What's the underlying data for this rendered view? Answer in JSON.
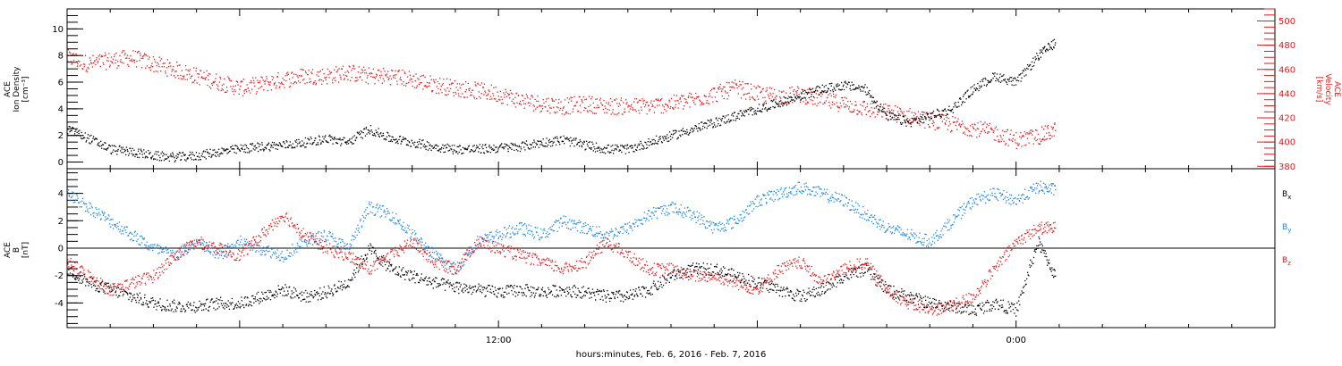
{
  "footer": {
    "xlabel": "hours:minutes, Feb.  6, 2016 - Feb.  7, 2016"
  },
  "colors": {
    "black": "#000000",
    "red": "#e41a1c",
    "blue": "#1e88e5"
  },
  "chart_data": [
    {
      "type": "scatter",
      "title": "",
      "ylabel_left": [
        "ACE",
        "Ion Density",
        "[cm⁻³]"
      ],
      "ylabel_right": [
        "ACE",
        "Velocity",
        "[km/s]"
      ],
      "x_range_hours": [
        2.0,
        30.0
      ],
      "x_axis_type": "time",
      "xtick_labels": [
        {
          "x": 12,
          "label": "12:00"
        },
        {
          "x": 24,
          "label": "0:00"
        }
      ],
      "ylim_left": [
        -0.5,
        11.5
      ],
      "yticks_left": [
        0,
        2,
        4,
        6,
        8,
        10
      ],
      "ylim_right": [
        378,
        510
      ],
      "yticks_right": [
        380,
        400,
        420,
        440,
        460,
        480,
        500
      ],
      "series": [
        {
          "name": "Ion Density",
          "color": "#000000",
          "axis": "left",
          "points": [
            [
              2.0,
              2.5
            ],
            [
              2.5,
              1.8
            ],
            [
              3.0,
              1.0
            ],
            [
              3.5,
              0.8
            ],
            [
              4.0,
              0.5
            ],
            [
              4.5,
              0.4
            ],
            [
              5.0,
              0.5
            ],
            [
              5.5,
              0.8
            ],
            [
              6.0,
              1.0
            ],
            [
              6.5,
              1.2
            ],
            [
              7.0,
              1.3
            ],
            [
              7.5,
              1.5
            ],
            [
              8.0,
              1.8
            ],
            [
              8.5,
              1.5
            ],
            [
              9.0,
              2.5
            ],
            [
              9.5,
              1.8
            ],
            [
              10.0,
              1.5
            ],
            [
              10.5,
              1.2
            ],
            [
              11.0,
              1.0
            ],
            [
              11.5,
              1.0
            ],
            [
              12.0,
              1.1
            ],
            [
              12.5,
              1.2
            ],
            [
              13.0,
              1.5
            ],
            [
              13.5,
              1.7
            ],
            [
              14.0,
              1.3
            ],
            [
              14.5,
              1.0
            ],
            [
              15.0,
              1.0
            ],
            [
              15.5,
              1.5
            ],
            [
              16.0,
              2.0
            ],
            [
              16.5,
              2.5
            ],
            [
              17.0,
              3.0
            ],
            [
              17.5,
              3.5
            ],
            [
              18.0,
              4.0
            ],
            [
              18.5,
              4.5
            ],
            [
              19.0,
              5.0
            ],
            [
              19.5,
              5.5
            ],
            [
              20.0,
              5.8
            ],
            [
              20.5,
              5.5
            ],
            [
              21.0,
              3.5
            ],
            [
              21.5,
              3.0
            ],
            [
              22.0,
              3.5
            ],
            [
              22.5,
              4.0
            ],
            [
              23.0,
              5.5
            ],
            [
              23.5,
              6.5
            ],
            [
              24.0,
              6.0
            ],
            [
              24.5,
              8.0
            ],
            [
              24.9,
              9.0
            ]
          ]
        },
        {
          "name": "Velocity",
          "color": "#e41a1c",
          "axis": "right",
          "points": [
            [
              2.0,
              470
            ],
            [
              2.5,
              465
            ],
            [
              3.0,
              468
            ],
            [
              3.5,
              470
            ],
            [
              4.0,
              465
            ],
            [
              4.5,
              460
            ],
            [
              5.0,
              455
            ],
            [
              5.5,
              450
            ],
            [
              6.0,
              445
            ],
            [
              6.5,
              448
            ],
            [
              7.0,
              452
            ],
            [
              7.5,
              455
            ],
            [
              8.0,
              455
            ],
            [
              8.5,
              458
            ],
            [
              9.0,
              455
            ],
            [
              9.5,
              455
            ],
            [
              10.0,
              452
            ],
            [
              10.5,
              448
            ],
            [
              11.0,
              445
            ],
            [
              11.5,
              443
            ],
            [
              12.0,
              440
            ],
            [
              12.5,
              435
            ],
            [
              13.0,
              432
            ],
            [
              13.5,
              430
            ],
            [
              14.0,
              432
            ],
            [
              14.5,
              430
            ],
            [
              15.0,
              430
            ],
            [
              15.5,
              430
            ],
            [
              16.0,
              432
            ],
            [
              16.5,
              435
            ],
            [
              17.0,
              440
            ],
            [
              17.5,
              445
            ],
            [
              18.0,
              440
            ],
            [
              18.5,
              438
            ],
            [
              19.0,
              440
            ],
            [
              19.5,
              435
            ],
            [
              20.0,
              432
            ],
            [
              20.5,
              428
            ],
            [
              21.0,
              425
            ],
            [
              21.5,
              422
            ],
            [
              22.0,
              418
            ],
            [
              22.5,
              415
            ],
            [
              23.0,
              412
            ],
            [
              23.5,
              408
            ],
            [
              24.0,
              402
            ],
            [
              24.5,
              405
            ],
            [
              24.9,
              410
            ]
          ]
        }
      ]
    },
    {
      "type": "scatter",
      "title": "",
      "ylabel_left": [
        "ACE",
        "B",
        "[nT]"
      ],
      "x_range_hours": [
        2.0,
        30.0
      ],
      "x_axis_type": "time",
      "xtick_labels": [
        {
          "x": 12,
          "label": "12:00"
        },
        {
          "x": 24,
          "label": "0:00"
        }
      ],
      "ylim_left": [
        -5.8,
        5.8
      ],
      "yticks_left": [
        -4,
        -2,
        0,
        2,
        4
      ],
      "zero_line": true,
      "legend": {
        "placement": "right",
        "entries": [
          {
            "name": "B",
            "sub": "x",
            "color": "#000000"
          },
          {
            "name": "B",
            "sub": "y",
            "color": "#1e88e5"
          },
          {
            "name": "B",
            "sub": "z",
            "color": "#e41a1c"
          }
        ]
      },
      "series": [
        {
          "name": "Bx",
          "color": "#000000",
          "points": [
            [
              2.0,
              -1.5
            ],
            [
              2.5,
              -2.5
            ],
            [
              3.0,
              -3.0
            ],
            [
              3.5,
              -3.5
            ],
            [
              4.0,
              -4.0
            ],
            [
              4.5,
              -4.2
            ],
            [
              5.0,
              -4.2
            ],
            [
              5.5,
              -4.0
            ],
            [
              6.0,
              -4.0
            ],
            [
              6.5,
              -3.5
            ],
            [
              7.0,
              -3.0
            ],
            [
              7.5,
              -3.5
            ],
            [
              8.0,
              -3.2
            ],
            [
              8.5,
              -2.5
            ],
            [
              9.0,
              0.0
            ],
            [
              9.5,
              -1.5
            ],
            [
              10.0,
              -2.0
            ],
            [
              10.5,
              -2.5
            ],
            [
              11.0,
              -2.8
            ],
            [
              11.5,
              -3.0
            ],
            [
              12.0,
              -3.2
            ],
            [
              12.5,
              -3.0
            ],
            [
              13.0,
              -3.2
            ],
            [
              13.5,
              -3.0
            ],
            [
              14.0,
              -3.2
            ],
            [
              14.5,
              -3.5
            ],
            [
              15.0,
              -3.5
            ],
            [
              15.5,
              -3.0
            ],
            [
              16.0,
              -2.0
            ],
            [
              16.5,
              -1.5
            ],
            [
              17.0,
              -1.5
            ],
            [
              17.5,
              -2.0
            ],
            [
              18.0,
              -2.5
            ],
            [
              18.5,
              -3.0
            ],
            [
              19.0,
              -3.5
            ],
            [
              19.5,
              -3.0
            ],
            [
              20.0,
              -2.0
            ],
            [
              20.5,
              -1.5
            ],
            [
              21.0,
              -3.0
            ],
            [
              21.5,
              -3.5
            ],
            [
              22.0,
              -4.0
            ],
            [
              22.5,
              -4.2
            ],
            [
              23.0,
              -4.5
            ],
            [
              23.5,
              -4.0
            ],
            [
              24.0,
              -4.5
            ],
            [
              24.5,
              0.5
            ],
            [
              24.9,
              -2.0
            ]
          ]
        },
        {
          "name": "By",
          "color": "#1e88e5",
          "points": [
            [
              2.0,
              4.0
            ],
            [
              2.5,
              3.0
            ],
            [
              3.0,
              2.0
            ],
            [
              3.5,
              1.0
            ],
            [
              4.0,
              0.0
            ],
            [
              4.5,
              -0.5
            ],
            [
              5.0,
              0.5
            ],
            [
              5.5,
              -0.5
            ],
            [
              6.0,
              0.5
            ],
            [
              6.5,
              0.0
            ],
            [
              7.0,
              -0.5
            ],
            [
              7.5,
              0.5
            ],
            [
              8.0,
              1.0
            ],
            [
              8.5,
              0.0
            ],
            [
              9.0,
              3.0
            ],
            [
              9.5,
              2.5
            ],
            [
              10.0,
              1.0
            ],
            [
              10.5,
              -0.5
            ],
            [
              11.0,
              -1.5
            ],
            [
              11.5,
              0.5
            ],
            [
              12.0,
              1.0
            ],
            [
              12.5,
              1.5
            ],
            [
              13.0,
              1.0
            ],
            [
              13.5,
              2.0
            ],
            [
              14.0,
              1.5
            ],
            [
              14.5,
              1.0
            ],
            [
              15.0,
              1.5
            ],
            [
              15.5,
              2.5
            ],
            [
              16.0,
              3.0
            ],
            [
              16.5,
              2.5
            ],
            [
              17.0,
              1.5
            ],
            [
              17.5,
              2.0
            ],
            [
              18.0,
              3.5
            ],
            [
              18.5,
              4.0
            ],
            [
              19.0,
              4.5
            ],
            [
              19.5,
              4.0
            ],
            [
              20.0,
              3.5
            ],
            [
              20.5,
              2.5
            ],
            [
              21.0,
              1.5
            ],
            [
              21.5,
              1.0
            ],
            [
              22.0,
              0.5
            ],
            [
              22.5,
              2.0
            ],
            [
              23.0,
              3.5
            ],
            [
              23.5,
              4.0
            ],
            [
              24.0,
              3.5
            ],
            [
              24.5,
              4.5
            ],
            [
              24.9,
              4.3
            ]
          ]
        },
        {
          "name": "Bz",
          "color": "#e41a1c",
          "points": [
            [
              2.0,
              -1.0
            ],
            [
              2.5,
              -2.0
            ],
            [
              3.0,
              -3.0
            ],
            [
              3.5,
              -2.5
            ],
            [
              4.0,
              -2.0
            ],
            [
              4.5,
              -0.5
            ],
            [
              5.0,
              0.5
            ],
            [
              5.5,
              0.0
            ],
            [
              6.0,
              -0.5
            ],
            [
              6.5,
              1.0
            ],
            [
              7.0,
              2.5
            ],
            [
              7.5,
              1.0
            ],
            [
              8.0,
              0.0
            ],
            [
              8.5,
              -0.5
            ],
            [
              9.0,
              -1.5
            ],
            [
              9.5,
              -0.5
            ],
            [
              10.0,
              0.5
            ],
            [
              10.5,
              -1.0
            ],
            [
              11.0,
              -1.5
            ],
            [
              11.5,
              0.5
            ],
            [
              12.0,
              0.0
            ],
            [
              12.5,
              -0.5
            ],
            [
              13.0,
              -1.0
            ],
            [
              13.5,
              -1.5
            ],
            [
              14.0,
              -1.0
            ],
            [
              14.5,
              0.5
            ],
            [
              15.0,
              -0.5
            ],
            [
              15.5,
              -1.5
            ],
            [
              16.0,
              -1.5
            ],
            [
              16.5,
              -2.0
            ],
            [
              17.0,
              -2.0
            ],
            [
              17.5,
              -2.5
            ],
            [
              18.0,
              -3.0
            ],
            [
              18.5,
              -1.5
            ],
            [
              19.0,
              -1.0
            ],
            [
              19.5,
              -2.5
            ],
            [
              20.0,
              -1.5
            ],
            [
              20.5,
              -1.0
            ],
            [
              21.0,
              -3.0
            ],
            [
              21.5,
              -4.0
            ],
            [
              22.0,
              -4.5
            ],
            [
              22.5,
              -4.2
            ],
            [
              23.0,
              -3.5
            ],
            [
              23.5,
              -1.5
            ],
            [
              24.0,
              0.5
            ],
            [
              24.5,
              1.5
            ],
            [
              24.9,
              1.5
            ]
          ]
        }
      ]
    }
  ]
}
